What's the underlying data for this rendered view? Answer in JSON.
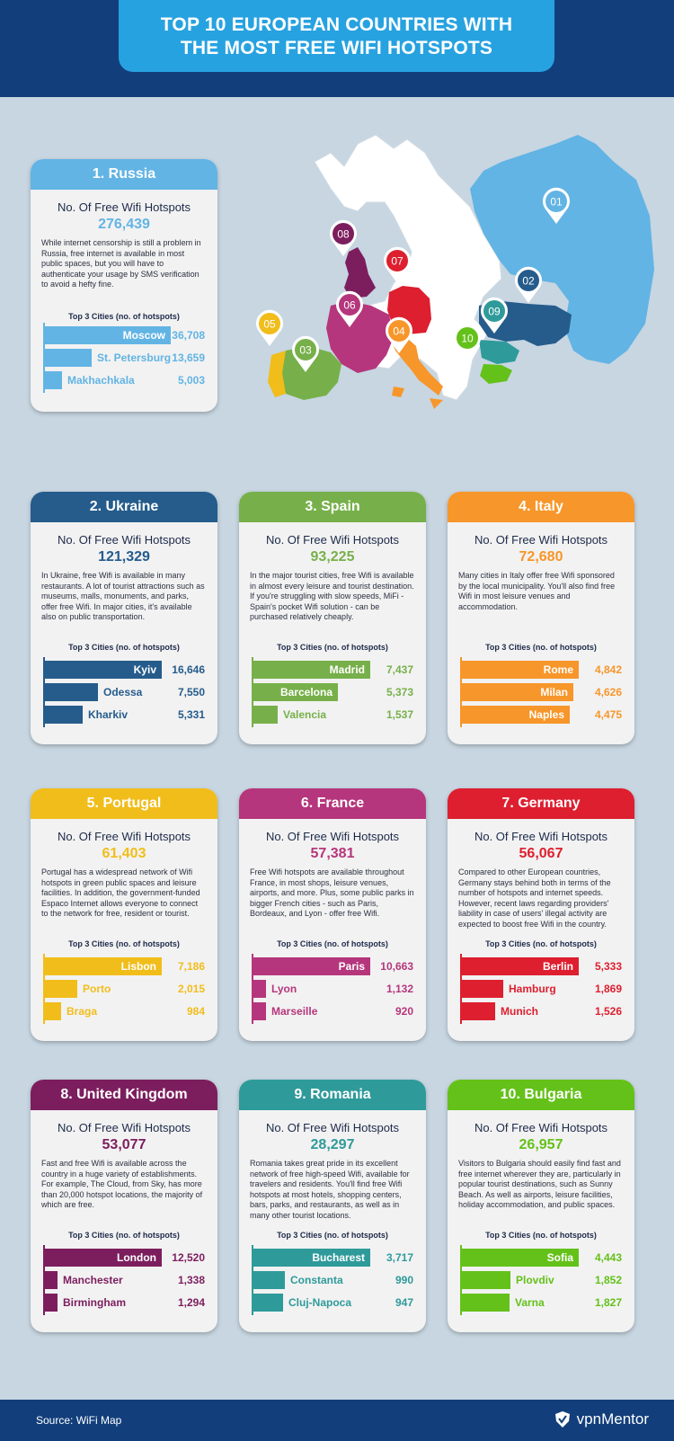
{
  "header": {
    "title_line1": "TOP 10 EUROPEAN COUNTRIES WITH",
    "title_line2": "THE MOST FREE WIFI HOTSPOTS"
  },
  "labels": {
    "hotspots_label": "No. Of Free Wifi Hotspots",
    "top3_label": "Top 3 Cities (no. of hotspots)"
  },
  "footer": {
    "source": "Source: WiFi Map",
    "brand": "vpnMentor"
  },
  "chart_data": {
    "type": "bar",
    "countries": [
      {
        "title": "1. Russia",
        "total": "276,439",
        "color": "#62b4e4",
        "desc": "While internet censorship is still a problem in Russia, free internet is available in most public spaces, but you will have to authenticate your usage by SMS verification to avoid a hefty fine.",
        "cities": [
          {
            "name": "Moscow",
            "value": 36708,
            "label": "36,708"
          },
          {
            "name": "St. Petersburg",
            "value": 13659,
            "label": "13,659"
          },
          {
            "name": "Makhachkala",
            "value": 5003,
            "label": "5,003"
          }
        ]
      },
      {
        "title": "2. Ukraine",
        "total": "121,329",
        "color": "#255c8c",
        "desc": "In Ukraine, free Wifi is available in many restaurants. A lot of tourist attractions such as museums, malls, monuments, and parks, offer free Wifi. In major cities, it's available also on public transportation.",
        "cities": [
          {
            "name": "Kyiv",
            "value": 16646,
            "label": "16,646"
          },
          {
            "name": "Odessa",
            "value": 7550,
            "label": "7,550"
          },
          {
            "name": "Kharkiv",
            "value": 5331,
            "label": "5,331"
          }
        ]
      },
      {
        "title": "3. Spain",
        "total": "93,225",
        "color": "#77b04a",
        "desc": "In the major tourist cities, free Wifi is available in almost every leisure and tourist destination. If you're struggling with slow speeds, MiFi - Spain's pocket Wifi solution - can be purchased relatively cheaply.",
        "cities": [
          {
            "name": "Madrid",
            "value": 7437,
            "label": "7,437"
          },
          {
            "name": "Barcelona",
            "value": 5373,
            "label": "5,373"
          },
          {
            "name": "Valencia",
            "value": 1537,
            "label": "1,537"
          }
        ]
      },
      {
        "title": "4. Italy",
        "total": "72,680",
        "color": "#f7962a",
        "desc": "Many cities in Italy offer free Wifi sponsored by the local municipality. You'll also find free Wifi in most leisure venues and accommodation.",
        "cities": [
          {
            "name": "Rome",
            "value": 4842,
            "label": "4,842"
          },
          {
            "name": "Milan",
            "value": 4626,
            "label": "4,626"
          },
          {
            "name": "Naples",
            "value": 4475,
            "label": "4,475"
          }
        ]
      },
      {
        "title": "5. Portugal",
        "total": "61,403",
        "color": "#f1bd1b",
        "desc": "Portugal has a widespread network of Wifi hotspots in green public spaces and leisure facilities. In addition, the government-funded Espaco Internet allows everyone to connect to the network for free, resident or tourist.",
        "cities": [
          {
            "name": "Lisbon",
            "value": 7186,
            "label": "7,186"
          },
          {
            "name": "Porto",
            "value": 2015,
            "label": "2,015"
          },
          {
            "name": "Braga",
            "value": 984,
            "label": "984"
          }
        ]
      },
      {
        "title": "6. France",
        "total": "57,381",
        "color": "#b5367c",
        "desc": "Free Wifi hotspots are available throughout France, in most shops, leisure venues, airports, and more. Plus, some public parks in bigger French cities - such as Paris, Bordeaux, and Lyon - offer free Wifi.",
        "cities": [
          {
            "name": "Paris",
            "value": 10663,
            "label": "10,663"
          },
          {
            "name": "Lyon",
            "value": 1132,
            "label": "1,132"
          },
          {
            "name": "Marseille",
            "value": 920,
            "label": "920"
          }
        ]
      },
      {
        "title": "7. Germany",
        "total": "56,067",
        "color": "#dd1f2f",
        "desc": "Compared to other European countries, Germany stays behind both in terms of the number of hotspots and internet speeds. However, recent laws regarding providers' liability in case of users' illegal activity are expected to boost free Wifi in the country.",
        "cities": [
          {
            "name": "Berlin",
            "value": 5333,
            "label": "5,333"
          },
          {
            "name": "Hamburg",
            "value": 1869,
            "label": "1,869"
          },
          {
            "name": "Munich",
            "value": 1526,
            "label": "1,526"
          }
        ]
      },
      {
        "title": "8. United Kingdom",
        "total": "53,077",
        "color": "#7c1e5e",
        "desc": "Fast and free Wifi is available across the country in a huge variety of establishments. For example, The Cloud, from Sky, has more than 20,000 hotspot locations, the majority of which are free.",
        "cities": [
          {
            "name": "London",
            "value": 12520,
            "label": "12,520"
          },
          {
            "name": "Manchester",
            "value": 1338,
            "label": "1,338"
          },
          {
            "name": "Birmingham",
            "value": 1294,
            "label": "1,294"
          }
        ]
      },
      {
        "title": "9. Romania",
        "total": "28,297",
        "color": "#2f9a9a",
        "desc": "Romania takes great pride in its excellent network of free high-speed Wifi, available for travelers and residents. You'll find free Wifi hotspots at most hotels, shopping centers, bars, parks, and restaurants, as well as in many other tourist locations.",
        "cities": [
          {
            "name": "Bucharest",
            "value": 3717,
            "label": "3,717"
          },
          {
            "name": "Constanta",
            "value": 990,
            "label": "990"
          },
          {
            "name": "Cluj-Napoca",
            "value": 947,
            "label": "947"
          }
        ]
      },
      {
        "title": "10. Bulgaria",
        "total": "26,957",
        "color": "#64c11a",
        "desc": "Visitors to Bulgaria should easily find fast and free internet wherever they are, particularly in popular tourist destinations, such as Sunny Beach. As well as airports, leisure facilities, holiday accommodation, and public spaces.",
        "cities": [
          {
            "name": "Sofia",
            "value": 4443,
            "label": "4,443"
          },
          {
            "name": "Plovdiv",
            "value": 1852,
            "label": "1,852"
          },
          {
            "name": "Varna",
            "value": 1827,
            "label": "1,827"
          }
        ]
      }
    ]
  },
  "map_pins": [
    {
      "label": "01",
      "color": "#62b4e4"
    },
    {
      "label": "02",
      "color": "#255c8c"
    },
    {
      "label": "03",
      "color": "#77b04a"
    },
    {
      "label": "04",
      "color": "#f7962a"
    },
    {
      "label": "05",
      "color": "#f1bd1b"
    },
    {
      "label": "06",
      "color": "#b5367c"
    },
    {
      "label": "07",
      "color": "#dd1f2f"
    },
    {
      "label": "08",
      "color": "#7c1e5e"
    },
    {
      "label": "09",
      "color": "#2f9a9a"
    },
    {
      "label": "10",
      "color": "#64c11a"
    }
  ]
}
